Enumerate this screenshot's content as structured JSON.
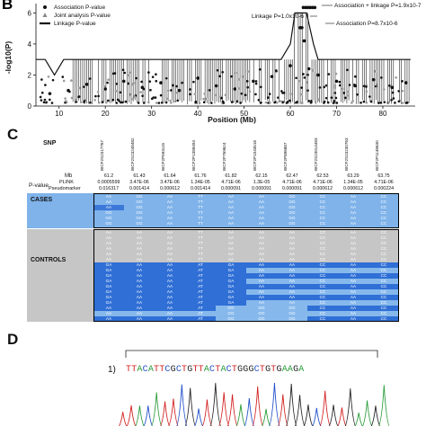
{
  "panel_b": {
    "letter": "B",
    "y_axis_label": "-log10(P)",
    "x_axis_label": "Position (Mb)",
    "y_ticks": [
      "0",
      "2",
      "4",
      "6"
    ],
    "x_ticks": [
      "10",
      "20",
      "30",
      "40",
      "50",
      "60",
      "70",
      "80"
    ],
    "legend": [
      {
        "label": "Association P-value",
        "marker": "circle"
      },
      {
        "label": "Joint analysis P-value",
        "marker": "triangle"
      },
      {
        "label": "Linkage P-value",
        "marker": "line"
      }
    ],
    "annotations": {
      "assoc_linkage": "Association + linkage P=1.9x10-7",
      "linkage": "Linkage P=1.0x10-6",
      "association": "Association P=8.7x10-6"
    },
    "colors": {
      "points": "#111111",
      "joint": "#9a9a9a",
      "line": "#111111"
    }
  },
  "chart_data": {
    "type": "scatter",
    "xlabel": "Position (Mb)",
    "ylabel": "-log10(P)",
    "xlim": [
      5,
      87
    ],
    "ylim": [
      0,
      6.6
    ],
    "series": [
      {
        "name": "Association P-value",
        "x": [
          8,
          12,
          16,
          20,
          24,
          28,
          32,
          36,
          40,
          44,
          48,
          52,
          56,
          60,
          62.1,
          62.5,
          63,
          64,
          66,
          70,
          74,
          78,
          82,
          85
        ],
        "y": [
          0.8,
          1.0,
          1.4,
          1.1,
          1.6,
          1.2,
          1.5,
          1.0,
          1.8,
          1.3,
          1.1,
          1.6,
          1.9,
          2.6,
          5.05,
          5.05,
          4.2,
          2.4,
          2.0,
          1.6,
          1.3,
          1.7,
          1.2,
          1.5
        ]
      },
      {
        "name": "Linkage P-value",
        "x": [
          5,
          7,
          9,
          11,
          13,
          20,
          30,
          40,
          50,
          58,
          60,
          61,
          62,
          63.5,
          65,
          66,
          70,
          80,
          84,
          86
        ],
        "y": [
          3.0,
          3.0,
          2.0,
          3.0,
          3.0,
          3.0,
          3.0,
          3.0,
          3.0,
          3.0,
          4.0,
          6.0,
          6.0,
          6.0,
          4.0,
          3.0,
          3.0,
          3.0,
          3.0,
          3.0
        ]
      }
    ]
  },
  "panel_c": {
    "letter": "C",
    "snp_header": "SNP",
    "mb_label": "Mb",
    "pvalue_label": "P-value",
    "plink_label": "PLINK",
    "pseudo_label": "Pseudomarker",
    "cases_label": "CASES",
    "controls_label": "CONTROLS",
    "snps": [
      "BICF2S2317767",
      "BICF2S23248482",
      "BICF2P593115",
      "BICF2P1389494",
      "BICF2P769624",
      "BICF2P1043518",
      "BICF2P896887",
      "BICF2S23014483",
      "BICF2S23230763",
      "BICF2P1148630"
    ],
    "mb": [
      "61.2",
      "61.43",
      "61.64",
      "61.76",
      "61.82",
      "62.15",
      "62.47",
      "62.53",
      "63.29",
      "63.75"
    ],
    "plink": [
      "0.0005599",
      "3.47E-06",
      "3.47E-06",
      "1.34E-05",
      "4.71E-06",
      "1.3E-05",
      "4.71E-06",
      "4.71E-06",
      "1.34E-05",
      "4.71E-06"
    ],
    "pseudomarker": [
      "0.016317",
      "0.001414",
      "0.000612",
      "0.001414",
      "0.000091",
      "0.000091",
      "0.000091",
      "0.000612",
      "0.000612",
      "0.000224"
    ],
    "case_rows": [
      [
        "AA",
        "GG",
        "AA",
        "TT",
        "AA",
        "AA",
        "GG",
        "CC",
        "AA",
        "CC"
      ],
      [
        "AA",
        "GG",
        "AA",
        "TT",
        "AA",
        "AA",
        "GG",
        "CC",
        "AA",
        "CC"
      ],
      [
        "AA",
        "GG",
        "AA",
        "TT",
        "AA",
        "AA",
        "GG",
        "CC",
        "AA",
        "CC"
      ],
      [
        "GG",
        "GG",
        "AA",
        "TT",
        "AA",
        "AA",
        "GG",
        "CC",
        "AA",
        "CC"
      ],
      [
        "GG",
        "GG",
        "AA",
        "TT",
        "AA",
        "AA",
        "GG",
        "CC",
        "AA",
        "CC"
      ],
      [
        "GG",
        "GG",
        "AA",
        "TT",
        "AA",
        "AA",
        "GG",
        "CC",
        "AA",
        "CC"
      ]
    ],
    "control_rows": [
      [
        "AA",
        "AA",
        "AA",
        "TT",
        "AA",
        "AA",
        "AA",
        "CC",
        "AA",
        "CC"
      ],
      [
        "AA",
        "AA",
        "AA",
        "TT",
        "AA",
        "AA",
        "AA",
        "CC",
        "AA",
        "CC"
      ],
      [
        "AA",
        "AA",
        "AA",
        "TT",
        "AA",
        "AA",
        "AA",
        "CC",
        "AA",
        "CC"
      ],
      [
        "AA",
        "AA",
        "AA",
        "TT",
        "AA",
        "AA",
        "AA",
        "CC",
        "AA",
        "CC"
      ],
      [
        "AA",
        "AA",
        "AA",
        "TT",
        "AA",
        "AA",
        "AA",
        "CC",
        "AA",
        "CC"
      ],
      [
        "AA",
        "AA",
        "AA",
        "TT",
        "AA",
        "AA",
        "AA",
        "CC",
        "AA",
        "CC"
      ],
      [
        "GA",
        "AA",
        "AA",
        "AT",
        "GA",
        "AA",
        "AA",
        "CC",
        "AA",
        "CC"
      ],
      [
        "GA",
        "AA",
        "AA",
        "AT",
        "GA",
        "AA",
        "AA",
        "CC",
        "AA",
        "CC"
      ],
      [
        "GA",
        "AA",
        "AA",
        "AT",
        "GA",
        "AA",
        "AA",
        "CC",
        "AA",
        "CC"
      ],
      [
        "GA",
        "AA",
        "AA",
        "AT",
        "GA",
        "AA",
        "AA",
        "CC",
        "AA",
        "CC"
      ],
      [
        "GA",
        "AA",
        "AA",
        "AT",
        "GA",
        "AA",
        "AA",
        "CC",
        "AA",
        "CC"
      ],
      [
        "GA",
        "AA",
        "AA",
        "AT",
        "GA",
        "AA",
        "AA",
        "CC",
        "AA",
        "CC"
      ],
      [
        "GA",
        "AA",
        "AA",
        "AT",
        "GA",
        "AA",
        "AA",
        "CC",
        "AA",
        "CC"
      ],
      [
        "GA",
        "AA",
        "AA",
        "AT",
        "GA",
        "AA",
        "AA",
        "CC",
        "AA",
        "CC"
      ],
      [
        "AA",
        "AA",
        "AA",
        "AT",
        "GG",
        "GG",
        "GG",
        "CC",
        "AA",
        "CC"
      ],
      [
        "AA",
        "AA",
        "AA",
        "AT",
        "GG",
        "GG",
        "GG",
        "CC",
        "AA",
        "CC"
      ],
      [
        "AA",
        "AA",
        "AA",
        "AT",
        "GG",
        "GG",
        "GG",
        "CC",
        "AA",
        "CC"
      ]
    ],
    "colors": {
      "case_light": "#7fb3ea",
      "case_dark": "#3c78d8",
      "ctrl_gray": "#c6c6c6",
      "ctrl_blue": "#2f6fd6",
      "ctrl_light": "#86b8ec"
    }
  },
  "panel_d": {
    "letter": "D",
    "prefix": "1)",
    "sequence": "TTACATTCGCTGTTACTACTGGGCTGTGAAGA",
    "base_colors": {
      "A": "#2a9d3a",
      "C": "#1f4fc9",
      "G": "#222222",
      "T": "#d21f1f"
    }
  }
}
